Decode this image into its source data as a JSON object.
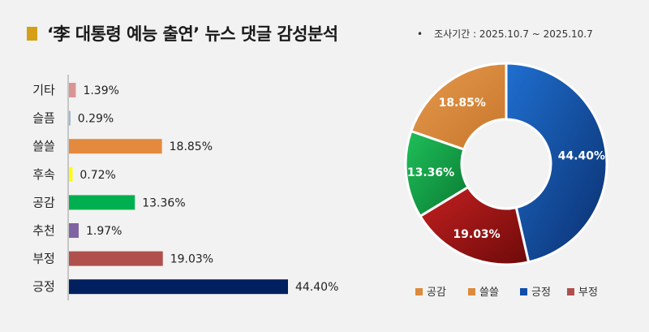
{
  "header": {
    "title": "‘李 대통령 예능 출연’ 뉴스 댓글 감성분석",
    "period": "조사기간 : 2025.10.7 ~ 2025.10.7",
    "bullet": "•",
    "marker_color": "#d4a017"
  },
  "chart_data": [
    {
      "type": "bar",
      "orientation": "horizontal",
      "categories": [
        "기타",
        "슬픔",
        "쓸쓸",
        "후속",
        "공감",
        "추천",
        "부정",
        "긍정"
      ],
      "values": [
        1.39,
        0.29,
        18.85,
        0.72,
        13.36,
        1.97,
        19.03,
        44.4
      ],
      "value_labels": [
        "1.39%",
        "0.29%",
        "18.85%",
        "0.72%",
        "13.36%",
        "1.97%",
        "19.03%",
        "44.40%"
      ],
      "colors": [
        "#d99594",
        "#8db4e2",
        "#e48a3e",
        "#ffff00",
        "#00b050",
        "#8064a2",
        "#b0504d",
        "#002060"
      ],
      "grid": false
    },
    {
      "type": "pie",
      "variant": "donut",
      "categories": [
        "긍정",
        "부정",
        "공감",
        "쓸쓸"
      ],
      "values": [
        44.4,
        19.03,
        13.36,
        18.85
      ],
      "value_labels": [
        "44.40%",
        "19.03%",
        "13.36%",
        "18.85%"
      ],
      "colors": [
        "#0f4fa8",
        "#a01818",
        "#12a84a",
        "#dc8a3c"
      ],
      "legend": [
        {
          "label": "공감",
          "color": "#dc8a3c"
        },
        {
          "label": "쓸쓸",
          "color": "#dc8a3c"
        },
        {
          "label": "긍정",
          "color": "#0f4fa8"
        },
        {
          "label": "부정",
          "color": "#b0504d"
        }
      ],
      "legend_position": "bottom"
    }
  ]
}
